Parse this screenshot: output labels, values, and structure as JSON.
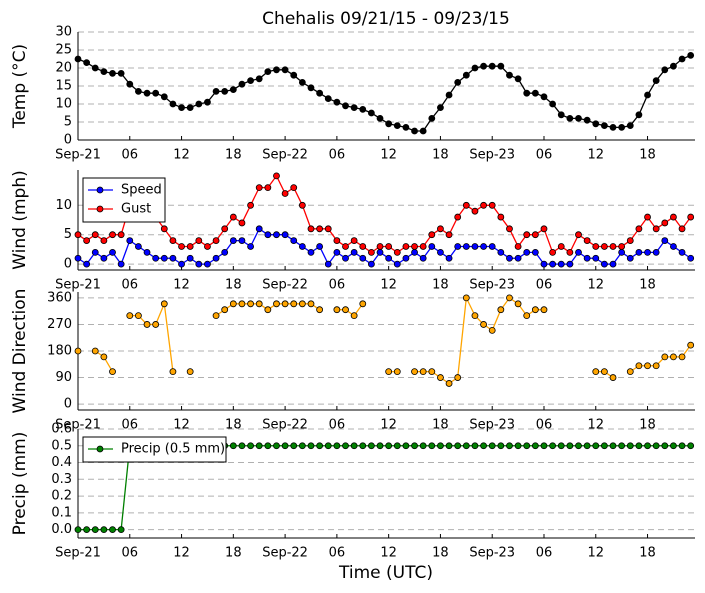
{
  "title": "Chehalis 09/21/15 - 09/23/15",
  "xlabel": "Time (UTC)",
  "x": [
    0,
    1,
    2,
    3,
    4,
    5,
    6,
    7,
    8,
    9,
    10,
    11,
    12,
    13,
    14,
    15,
    16,
    17,
    18,
    19,
    20,
    21,
    22,
    23,
    24,
    25,
    26,
    27,
    28,
    29,
    30,
    31,
    32,
    33,
    34,
    35,
    36,
    37,
    38,
    39,
    40,
    41,
    42,
    43,
    44,
    45,
    46,
    47,
    48,
    49,
    50,
    51,
    52,
    53,
    54,
    55,
    56,
    57,
    58,
    59,
    60,
    61,
    62,
    63,
    64,
    65,
    66,
    67,
    68,
    69,
    70,
    71
  ],
  "xlim": [
    0,
    71.5
  ],
  "xticks": [
    {
      "value": 0,
      "label": "Sep-21"
    },
    {
      "value": 6,
      "label": "06"
    },
    {
      "value": 12,
      "label": "12"
    },
    {
      "value": 18,
      "label": "18"
    },
    {
      "value": 24,
      "label": "Sep-22"
    },
    {
      "value": 30,
      "label": "06"
    },
    {
      "value": 36,
      "label": "12"
    },
    {
      "value": 42,
      "label": "18"
    },
    {
      "value": 48,
      "label": "Sep-23"
    },
    {
      "value": 54,
      "label": "06"
    },
    {
      "value": 60,
      "label": "12"
    },
    {
      "value": 66,
      "label": "18"
    }
  ],
  "chart_data": [
    {
      "type": "line",
      "ylabel": "Temp (°C)",
      "ylim": [
        0,
        30
      ],
      "yticks": [
        0,
        5,
        10,
        15,
        20,
        25,
        30
      ],
      "grid": true,
      "series": [
        {
          "color": "#000000",
          "values": [
            22.5,
            21.5,
            20,
            19,
            18.5,
            18.5,
            15.5,
            13.5,
            13,
            13,
            12,
            10,
            9,
            9,
            10,
            10.5,
            13.5,
            13.5,
            14,
            15.5,
            16.5,
            17,
            19,
            19.5,
            19.5,
            18,
            16,
            14.5,
            13,
            11.5,
            10.5,
            9.5,
            9,
            8.5,
            7.5,
            6,
            4.5,
            4,
            3.5,
            2.5,
            2.5,
            6,
            9,
            12.5,
            16,
            18,
            20,
            20.5,
            20.5,
            20.5,
            18,
            17,
            13,
            13,
            12,
            10,
            7,
            6,
            6,
            5.5,
            4.5,
            4,
            3.5,
            3.5,
            4,
            7,
            12.5,
            16.5,
            19.5,
            20.5,
            22.5,
            23.5
          ]
        }
      ]
    },
    {
      "type": "line",
      "ylabel": "Wind (mph)",
      "ylim": [
        -1,
        16
      ],
      "yticks": [
        0,
        5,
        10
      ],
      "grid": true,
      "legend": "upper left",
      "series": [
        {
          "name": "Speed",
          "color": "#0000ff",
          "values": [
            1,
            0,
            2,
            1,
            2,
            0,
            4,
            3,
            2,
            1,
            1,
            1,
            0,
            1,
            0,
            0,
            1,
            2,
            4,
            4,
            3,
            6,
            5,
            5,
            5,
            4,
            3,
            2,
            3,
            0,
            2,
            1,
            2,
            1,
            0,
            2,
            1,
            0,
            1,
            2,
            1,
            3,
            2,
            1,
            3,
            3,
            3,
            3,
            3,
            2,
            1,
            1,
            2,
            2,
            0,
            0,
            0,
            0,
            2,
            1,
            1,
            0,
            0,
            2,
            1,
            2,
            2,
            2,
            4,
            3,
            2,
            1
          ]
        },
        {
          "name": "Gust",
          "color": "#ff0000",
          "values": [
            5,
            4,
            5,
            4,
            5,
            5,
            10,
            9,
            9,
            8,
            6,
            4,
            3,
            3,
            4,
            3,
            4,
            6,
            8,
            7,
            10,
            13,
            13,
            15,
            12,
            13,
            10,
            6,
            6,
            6,
            4,
            3,
            4,
            3,
            2,
            3,
            3,
            2,
            3,
            3,
            3,
            5,
            6,
            5,
            8,
            10,
            9,
            10,
            10,
            8,
            6,
            3,
            5,
            5,
            6,
            2,
            3,
            2,
            5,
            4,
            3,
            3,
            3,
            3,
            4,
            6,
            8,
            6,
            7,
            8,
            6,
            8
          ]
        }
      ]
    },
    {
      "type": "line",
      "ylabel": "Wind Direction",
      "ylim": [
        -20,
        380
      ],
      "yticks": [
        0,
        90,
        180,
        270,
        360
      ],
      "grid": true,
      "series": [
        {
          "color": "#ffa500",
          "values": [
            180,
            null,
            180,
            160,
            110,
            null,
            300,
            300,
            270,
            270,
            340,
            110,
            null,
            110,
            null,
            null,
            300,
            320,
            340,
            340,
            340,
            340,
            320,
            340,
            340,
            340,
            340,
            340,
            320,
            null,
            320,
            320,
            300,
            340,
            null,
            null,
            110,
            110,
            null,
            110,
            110,
            110,
            90,
            70,
            90,
            360,
            300,
            270,
            250,
            320,
            360,
            340,
            300,
            320,
            320,
            null,
            null,
            null,
            null,
            null,
            110,
            110,
            90,
            null,
            110,
            130,
            130,
            130,
            160,
            160,
            160,
            200
          ]
        }
      ]
    },
    {
      "type": "line",
      "ylabel": "Precip (mm)",
      "ylim": [
        -0.05,
        0.6
      ],
      "yticks": [
        {
          "value": 0,
          "label": "0.0"
        },
        {
          "value": 0.1,
          "label": "0.1"
        },
        {
          "value": 0.2,
          "label": "0.2"
        },
        {
          "value": 0.3,
          "label": "0.3"
        },
        {
          "value": 0.4,
          "label": "0.4"
        },
        {
          "value": 0.5,
          "label": "0.5"
        },
        {
          "value": 0.6,
          "label": "0.6"
        }
      ],
      "grid": true,
      "legend": "upper left",
      "series": [
        {
          "name": "Precip (0.5 mm)",
          "color": "#008000",
          "values": [
            0,
            0,
            0,
            0,
            0,
            0,
            0.5,
            0.5,
            0.5,
            0.5,
            0.5,
            0.5,
            0.5,
            0.5,
            0.5,
            0.5,
            0.5,
            0.5,
            0.5,
            0.5,
            0.5,
            0.5,
            0.5,
            0.5,
            0.5,
            0.5,
            0.5,
            0.5,
            0.5,
            0.5,
            0.5,
            0.5,
            0.5,
            0.5,
            0.5,
            0.5,
            0.5,
            0.5,
            0.5,
            0.5,
            0.5,
            0.5,
            0.5,
            0.5,
            0.5,
            0.5,
            0.5,
            0.5,
            0.5,
            0.5,
            0.5,
            0.5,
            0.5,
            0.5,
            0.5,
            0.5,
            0.5,
            0.5,
            0.5,
            0.5,
            0.5,
            0.5,
            0.5,
            0.5,
            0.5,
            0.5,
            0.5,
            0.5,
            0.5,
            0.5,
            0.5,
            0.5
          ]
        }
      ]
    }
  ]
}
